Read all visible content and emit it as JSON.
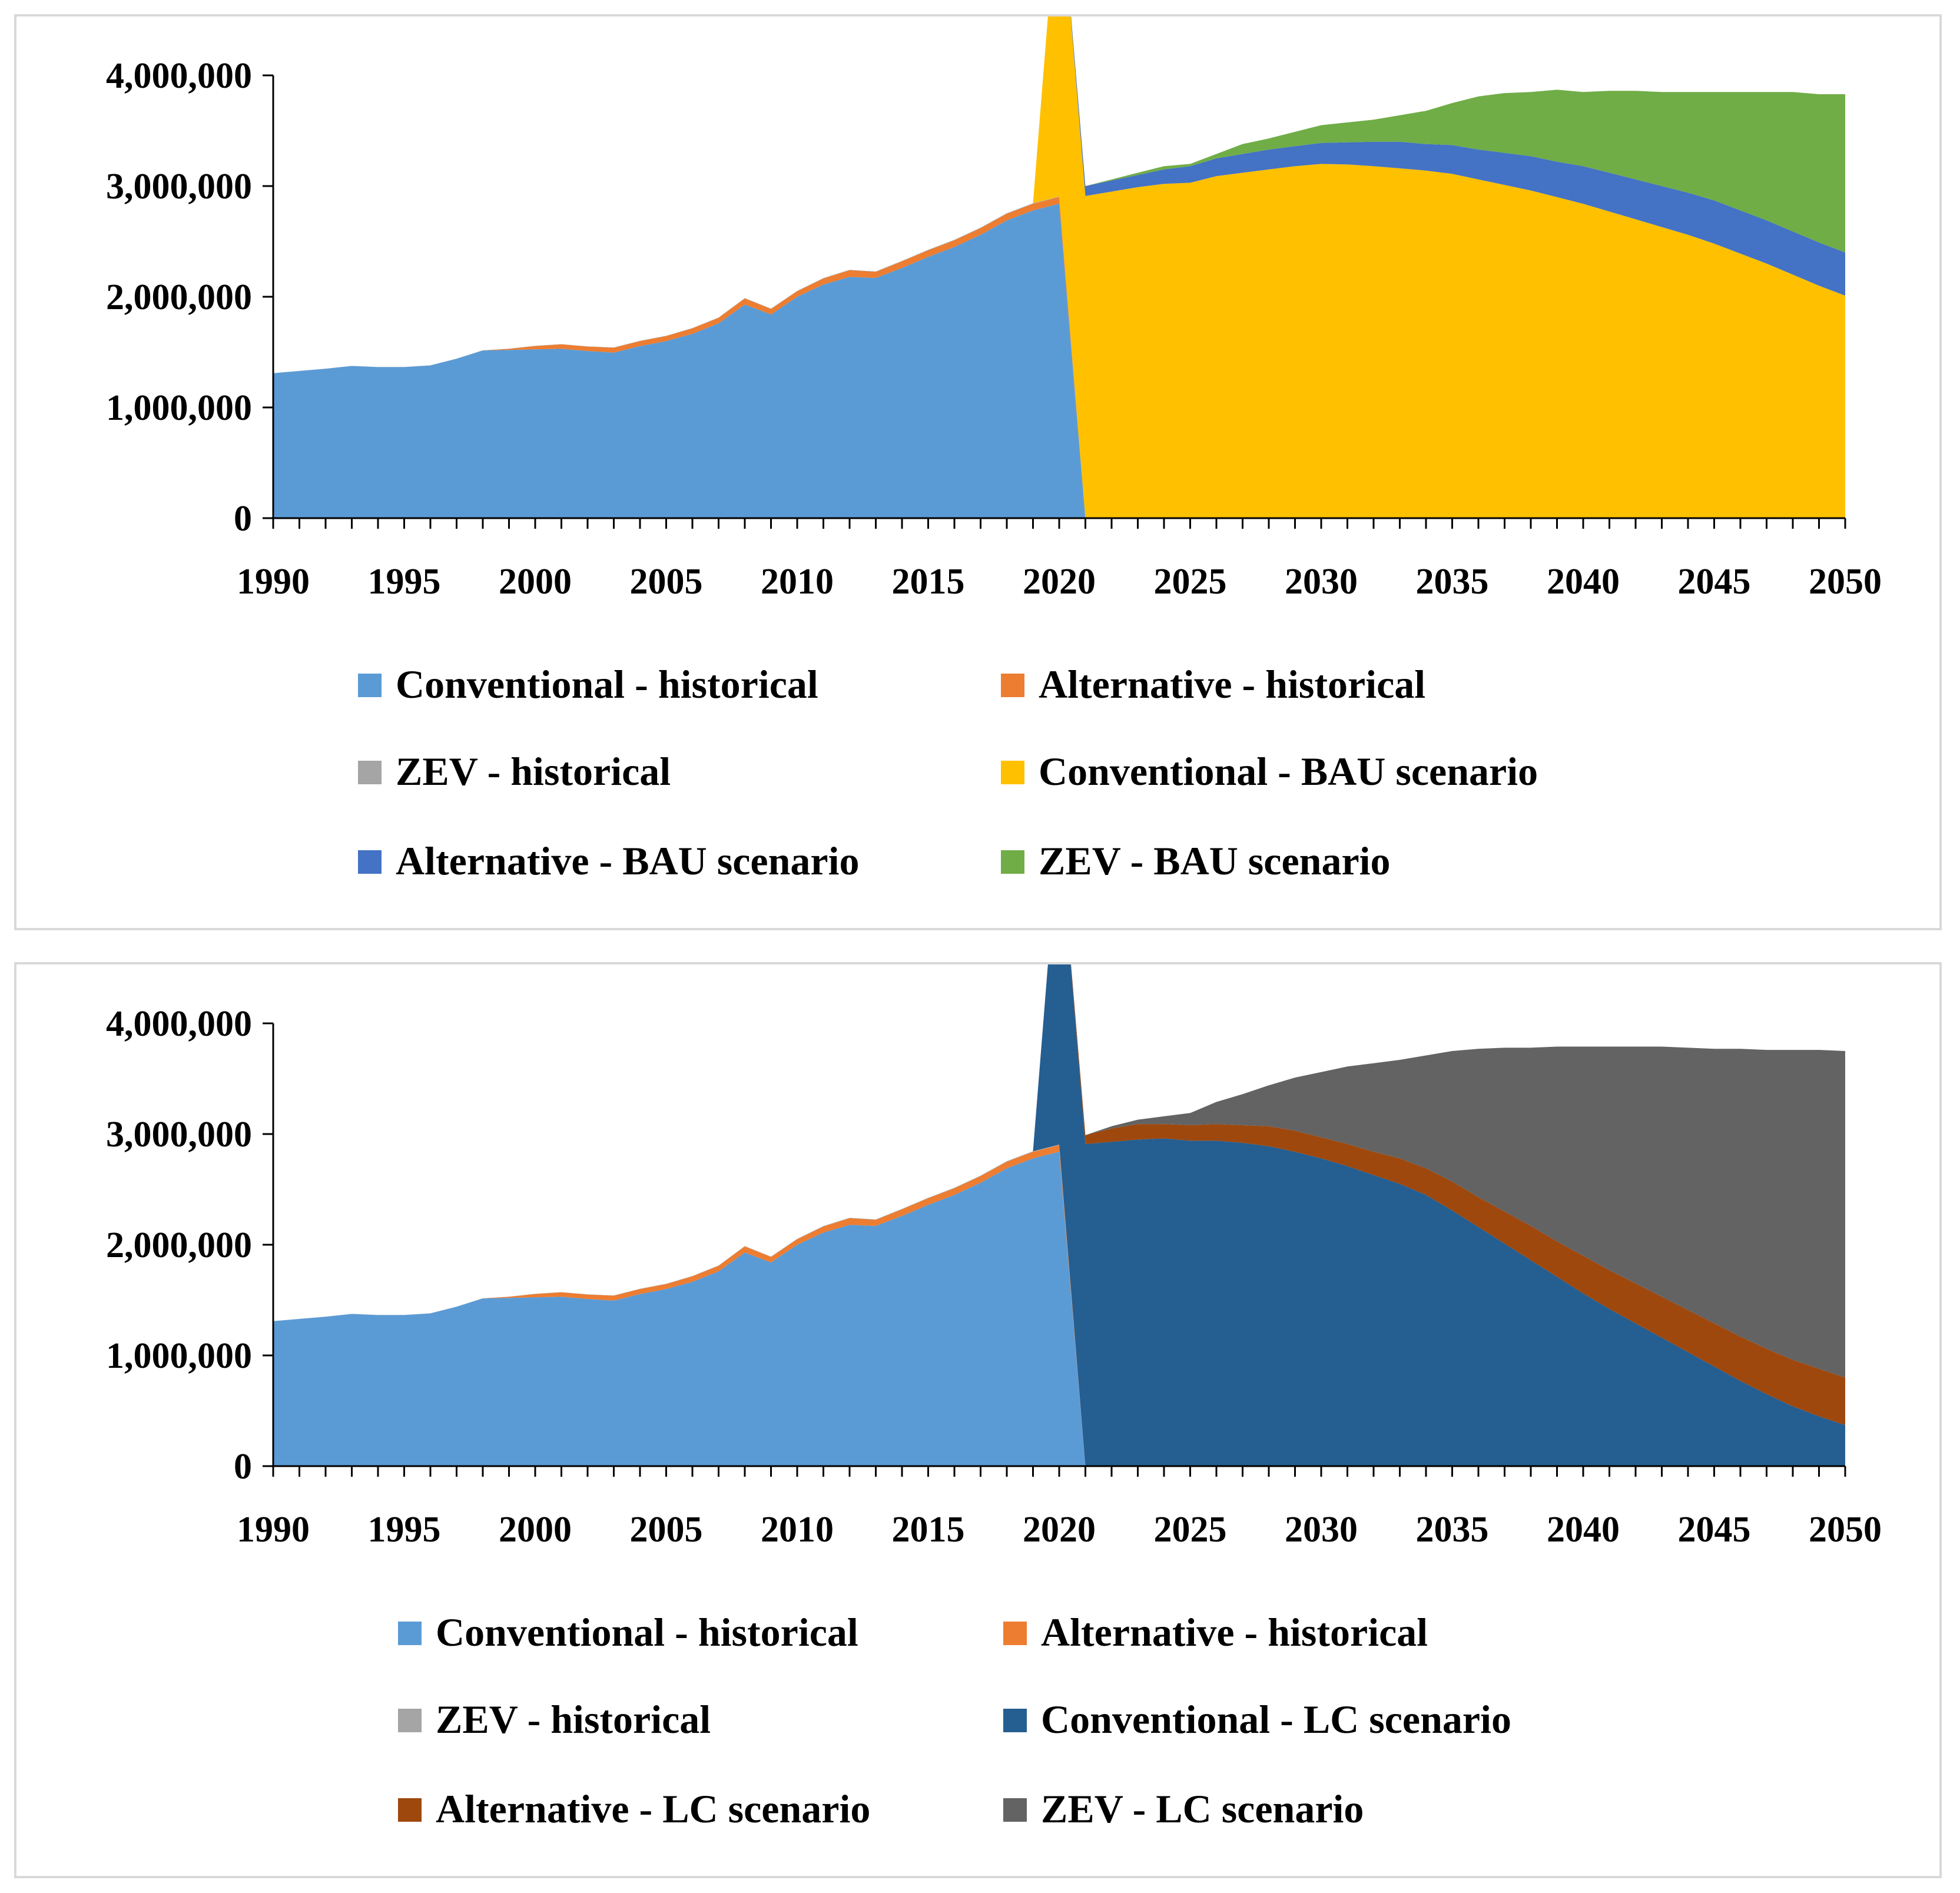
{
  "chart_data": [
    {
      "type": "area",
      "stacked": true,
      "title": "",
      "xlabel": "",
      "ylabel": "",
      "xlim": [
        1990,
        2050
      ],
      "ylim": [
        0,
        4000000
      ],
      "x_ticks": [
        "1990",
        "1995",
        "2000",
        "2005",
        "2010",
        "2015",
        "2020",
        "2025",
        "2030",
        "2035",
        "2040",
        "2045",
        "2050"
      ],
      "y_ticks": [
        "0",
        "1,000,000",
        "2,000,000",
        "3,000,000",
        "4,000,000"
      ],
      "legend_position": "bottom",
      "series": [
        {
          "name": "Conventional - historical",
          "color": "#5b9bd5",
          "x": [
            1990,
            1991,
            1992,
            1993,
            1994,
            1995,
            1996,
            1997,
            1998,
            1999,
            2000,
            2001,
            2002,
            2003,
            2004,
            2005,
            2006,
            2007,
            2008,
            2009,
            2010,
            2011,
            2012,
            2013,
            2014,
            2015,
            2016,
            2017,
            2018,
            2019,
            2020,
            2021
          ],
          "values": [
            1310000,
            1330000,
            1350000,
            1375000,
            1365000,
            1365000,
            1380000,
            1440000,
            1515000,
            1520000,
            1525000,
            1530000,
            1510000,
            1495000,
            1555000,
            1600000,
            1665000,
            1760000,
            1930000,
            1840000,
            2000000,
            2110000,
            2180000,
            2170000,
            2260000,
            2360000,
            2450000,
            2560000,
            2690000,
            2780000,
            2840000,
            0
          ]
        },
        {
          "name": "Alternative - historical",
          "color": "#ed7d31",
          "x": [
            1990,
            1991,
            1992,
            1993,
            1994,
            1995,
            1996,
            1997,
            1998,
            1999,
            2000,
            2001,
            2002,
            2003,
            2004,
            2005,
            2006,
            2007,
            2008,
            2009,
            2010,
            2011,
            2012,
            2013,
            2014,
            2015,
            2016,
            2017,
            2018,
            2019,
            2020,
            2021
          ],
          "values": [
            0,
            0,
            0,
            0,
            0,
            0,
            0,
            0,
            0,
            10000,
            30000,
            40000,
            40000,
            45000,
            45000,
            45000,
            50000,
            50000,
            55000,
            50000,
            50000,
            55000,
            60000,
            55000,
            60000,
            60000,
            60000,
            60000,
            60000,
            60000,
            60000,
            0
          ]
        },
        {
          "name": "ZEV - historical",
          "color": "#a5a5a5",
          "x": [
            1990,
            2020,
            2021
          ],
          "values": [
            0,
            5000,
            0
          ]
        },
        {
          "name": "Conventional - BAU scenario",
          "color": "#ffc000",
          "x": [
            2020,
            2021,
            2022,
            2023,
            2024,
            2025,
            2026,
            2027,
            2028,
            2029,
            2030,
            2031,
            2032,
            2033,
            2034,
            2035,
            2036,
            2037,
            2038,
            2039,
            2040,
            2041,
            2042,
            2043,
            2044,
            2045,
            2046,
            2047,
            2048,
            2049,
            2050
          ],
          "values": [
            2900000,
            2910000,
            2950000,
            2990000,
            3020000,
            3030000,
            3090000,
            3120000,
            3150000,
            3180000,
            3200000,
            3195000,
            3180000,
            3160000,
            3140000,
            3110000,
            3060000,
            3010000,
            2960000,
            2900000,
            2840000,
            2770000,
            2700000,
            2630000,
            2560000,
            2480000,
            2390000,
            2300000,
            2200000,
            2100000,
            2010000
          ]
        },
        {
          "name": "Alternative - BAU scenario",
          "color": "#4472c4",
          "x": [
            2020,
            2021,
            2022,
            2023,
            2024,
            2025,
            2026,
            2027,
            2028,
            2029,
            2030,
            2031,
            2032,
            2033,
            2034,
            2035,
            2036,
            2037,
            2038,
            2039,
            2040,
            2041,
            2042,
            2043,
            2044,
            2045,
            2046,
            2047,
            2048,
            2049,
            2050
          ],
          "values": [
            0,
            90000,
            100000,
            110000,
            130000,
            150000,
            160000,
            170000,
            180000,
            180000,
            190000,
            200000,
            220000,
            240000,
            240000,
            260000,
            270000,
            290000,
            310000,
            320000,
            340000,
            350000,
            360000,
            370000,
            380000,
            390000,
            390000,
            390000,
            390000,
            390000,
            390000
          ]
        },
        {
          "name": "ZEV - BAU scenario",
          "color": "#70ad47",
          "x": [
            2020,
            2021,
            2022,
            2023,
            2024,
            2025,
            2026,
            2027,
            2028,
            2029,
            2030,
            2031,
            2032,
            2033,
            2034,
            2035,
            2036,
            2037,
            2038,
            2039,
            2040,
            2041,
            2042,
            2043,
            2044,
            2045,
            2046,
            2047,
            2048,
            2049,
            2050
          ],
          "values": [
            0,
            0,
            10000,
            20000,
            30000,
            20000,
            40000,
            90000,
            100000,
            130000,
            160000,
            180000,
            200000,
            240000,
            300000,
            380000,
            480000,
            540000,
            580000,
            650000,
            670000,
            740000,
            800000,
            850000,
            910000,
            980000,
            1070000,
            1160000,
            1260000,
            1340000,
            1430000
          ]
        }
      ]
    },
    {
      "type": "area",
      "stacked": true,
      "title": "",
      "xlabel": "",
      "ylabel": "",
      "xlim": [
        1990,
        2050
      ],
      "ylim": [
        0,
        4000000
      ],
      "x_ticks": [
        "1990",
        "1995",
        "2000",
        "2005",
        "2010",
        "2015",
        "2020",
        "2025",
        "2030",
        "2035",
        "2040",
        "2045",
        "2050"
      ],
      "y_ticks": [
        "0",
        "1,000,000",
        "2,000,000",
        "3,000,000",
        "4,000,000"
      ],
      "legend_position": "bottom",
      "series": [
        {
          "name": "Conventional - historical",
          "color": "#5b9bd5",
          "x": [
            1990,
            1991,
            1992,
            1993,
            1994,
            1995,
            1996,
            1997,
            1998,
            1999,
            2000,
            2001,
            2002,
            2003,
            2004,
            2005,
            2006,
            2007,
            2008,
            2009,
            2010,
            2011,
            2012,
            2013,
            2014,
            2015,
            2016,
            2017,
            2018,
            2019,
            2020,
            2021
          ],
          "values": [
            1310000,
            1330000,
            1350000,
            1375000,
            1365000,
            1365000,
            1380000,
            1440000,
            1515000,
            1520000,
            1525000,
            1530000,
            1510000,
            1495000,
            1555000,
            1600000,
            1665000,
            1760000,
            1930000,
            1840000,
            2000000,
            2110000,
            2180000,
            2170000,
            2260000,
            2360000,
            2450000,
            2560000,
            2690000,
            2780000,
            2840000,
            0
          ]
        },
        {
          "name": "Alternative - historical",
          "color": "#ed7d31",
          "x": [
            1990,
            1991,
            1992,
            1993,
            1994,
            1995,
            1996,
            1997,
            1998,
            1999,
            2000,
            2001,
            2002,
            2003,
            2004,
            2005,
            2006,
            2007,
            2008,
            2009,
            2010,
            2011,
            2012,
            2013,
            2014,
            2015,
            2016,
            2017,
            2018,
            2019,
            2020,
            2021
          ],
          "values": [
            0,
            0,
            0,
            0,
            0,
            0,
            0,
            0,
            0,
            10000,
            30000,
            40000,
            40000,
            45000,
            45000,
            45000,
            50000,
            50000,
            55000,
            50000,
            50000,
            55000,
            60000,
            55000,
            60000,
            60000,
            60000,
            60000,
            60000,
            60000,
            60000,
            0
          ]
        },
        {
          "name": "ZEV - historical",
          "color": "#a5a5a5",
          "x": [
            1990,
            2020,
            2021
          ],
          "values": [
            0,
            5000,
            0
          ]
        },
        {
          "name": "Conventional - LC scenario",
          "color": "#255e91",
          "x": [
            2020,
            2021,
            2022,
            2023,
            2024,
            2025,
            2026,
            2027,
            2028,
            2029,
            2030,
            2031,
            2032,
            2033,
            2034,
            2035,
            2036,
            2037,
            2038,
            2039,
            2040,
            2041,
            2042,
            2043,
            2044,
            2045,
            2046,
            2047,
            2048,
            2049,
            2050
          ],
          "values": [
            2900000,
            2910000,
            2930000,
            2950000,
            2960000,
            2940000,
            2940000,
            2920000,
            2890000,
            2840000,
            2780000,
            2710000,
            2630000,
            2550000,
            2450000,
            2310000,
            2160000,
            2010000,
            1860000,
            1710000,
            1560000,
            1420000,
            1290000,
            1160000,
            1030000,
            900000,
            770000,
            650000,
            540000,
            450000,
            370000
          ]
        },
        {
          "name": "Alternative - LC scenario",
          "color": "#9e480e",
          "x": [
            2020,
            2021,
            2022,
            2023,
            2024,
            2025,
            2026,
            2027,
            2028,
            2029,
            2030,
            2031,
            2032,
            2033,
            2034,
            2035,
            2036,
            2037,
            2038,
            2039,
            2040,
            2041,
            2042,
            2043,
            2044,
            2045,
            2046,
            2047,
            2048,
            2049,
            2050
          ],
          "values": [
            0,
            80000,
            120000,
            140000,
            130000,
            140000,
            150000,
            160000,
            180000,
            190000,
            190000,
            200000,
            210000,
            230000,
            240000,
            260000,
            270000,
            290000,
            310000,
            320000,
            340000,
            350000,
            360000,
            370000,
            380000,
            390000,
            400000,
            410000,
            420000,
            430000,
            430000
          ]
        },
        {
          "name": "ZEV - LC scenario",
          "color": "#636363",
          "x": [
            2020,
            2021,
            2022,
            2023,
            2024,
            2025,
            2026,
            2027,
            2028,
            2029,
            2030,
            2031,
            2032,
            2033,
            2034,
            2035,
            2036,
            2037,
            2038,
            2039,
            2040,
            2041,
            2042,
            2043,
            2044,
            2045,
            2046,
            2047,
            2048,
            2049,
            2050
          ],
          "values": [
            0,
            0,
            20000,
            40000,
            70000,
            110000,
            200000,
            280000,
            370000,
            480000,
            590000,
            700000,
            800000,
            890000,
            1020000,
            1180000,
            1340000,
            1480000,
            1610000,
            1760000,
            1890000,
            2020000,
            2140000,
            2260000,
            2370000,
            2480000,
            2600000,
            2700000,
            2800000,
            2880000,
            2950000
          ]
        }
      ]
    }
  ]
}
